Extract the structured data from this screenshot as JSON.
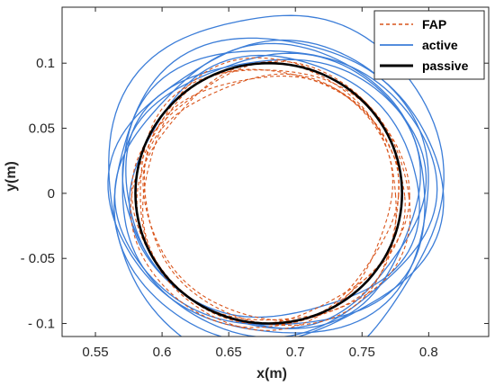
{
  "chart_data": {
    "type": "line",
    "title": "",
    "xlabel": "x(m)",
    "ylabel": "y(m)",
    "xlim": [
      0.525,
      0.845
    ],
    "ylim": [
      -0.11,
      0.143
    ],
    "xticks": [
      0.55,
      0.6,
      0.65,
      0.7,
      0.75,
      0.8
    ],
    "xtick_labels": [
      "0.55",
      "0.6",
      "0.65",
      "0.7",
      "0.75",
      "0.8"
    ],
    "yticks": [
      -0.1,
      -0.05,
      0,
      0.05,
      0.1
    ],
    "ytick_labels": [
      "- 0.1",
      "- 0.05",
      "0",
      "0.05",
      "0.1"
    ],
    "grid": false,
    "legend_position": "top-right",
    "series": [
      {
        "name": "FAP",
        "style": "dashed",
        "color": "#D9541A",
        "center": [
          0.681,
          -0.002
        ],
        "radius_x": [
          0.095,
          0.101,
          0.098,
          0.104,
          0.097,
          0.1,
          0.093
        ],
        "radius_y": [
          0.095,
          0.1,
          0.097,
          0.103,
          0.099,
          0.101,
          0.094
        ]
      },
      {
        "name": "active",
        "style": "solid",
        "color": "#3B7DD8",
        "center": [
          0.684,
          0.003
        ],
        "radius_x": [
          0.112,
          0.118,
          0.123,
          0.108,
          0.116,
          0.12,
          0.111,
          0.125
        ],
        "radius_y": [
          0.103,
          0.11,
          0.116,
          0.1,
          0.108,
          0.112,
          0.105,
          0.138
        ]
      },
      {
        "name": "passive",
        "style": "solid",
        "color": "#000000",
        "center": [
          0.68,
          0.0
        ],
        "radius_x": [
          0.1
        ],
        "radius_y": [
          0.1
        ]
      }
    ]
  }
}
